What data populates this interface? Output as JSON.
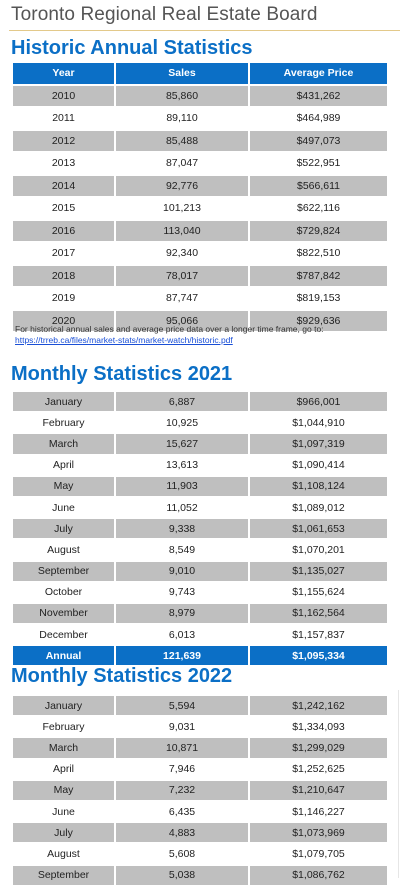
{
  "header": {
    "board": "Toronto Regional Real Estate Board"
  },
  "historic": {
    "title": "Historic Annual Statistics",
    "columns": [
      "Year",
      "Sales",
      "Average Price"
    ],
    "rows": [
      [
        "2010",
        "85,860",
        "$431,262"
      ],
      [
        "2011",
        "89,110",
        "$464,989"
      ],
      [
        "2012",
        "85,488",
        "$497,073"
      ],
      [
        "2013",
        "87,047",
        "$522,951"
      ],
      [
        "2014",
        "92,776",
        "$566,611"
      ],
      [
        "2015",
        "101,213",
        "$622,116"
      ],
      [
        "2016",
        "113,040",
        "$729,824"
      ],
      [
        "2017",
        "92,340",
        "$822,510"
      ],
      [
        "2018",
        "78,017",
        "$787,842"
      ],
      [
        "2019",
        "87,747",
        "$819,153"
      ],
      [
        "2020",
        "95,066",
        "$929,636"
      ]
    ],
    "note": "For historical annual sales and average price data over a longer time frame, go to:",
    "link": "https://trreb.ca/files/market-stats/market-watch/historic.pdf"
  },
  "monthly2021": {
    "title": "Monthly Statistics 2021",
    "rows": [
      [
        "January",
        "6,887",
        "$966,001"
      ],
      [
        "February",
        "10,925",
        "$1,044,910"
      ],
      [
        "March",
        "15,627",
        "$1,097,319"
      ],
      [
        "April",
        "13,613",
        "$1,090,414"
      ],
      [
        "May",
        "11,903",
        "$1,108,124"
      ],
      [
        "June",
        "11,052",
        "$1,089,012"
      ],
      [
        "July",
        "9,338",
        "$1,061,653"
      ],
      [
        "August",
        "8,549",
        "$1,070,201"
      ],
      [
        "September",
        "9,010",
        "$1,135,027"
      ],
      [
        "October",
        "9,743",
        "$1,155,624"
      ],
      [
        "November",
        "8,979",
        "$1,162,564"
      ],
      [
        "December",
        "6,013",
        "$1,157,837"
      ]
    ],
    "total": [
      "Annual",
      "121,639",
      "$1,095,334"
    ]
  },
  "monthly2022": {
    "title": "Monthly Statistics 2022",
    "rows": [
      [
        "January",
        "5,594",
        "$1,242,162"
      ],
      [
        "February",
        "9,031",
        "$1,334,093"
      ],
      [
        "March",
        "10,871",
        "$1,299,029"
      ],
      [
        "April",
        "7,946",
        "$1,252,625"
      ],
      [
        "May",
        "7,232",
        "$1,210,647"
      ],
      [
        "June",
        "6,435",
        "$1,146,227"
      ],
      [
        "July",
        "4,883",
        "$1,073,969"
      ],
      [
        "August",
        "5,608",
        "$1,079,705"
      ],
      [
        "September",
        "5,038",
        "$1,086,762"
      ]
    ]
  },
  "colors": {
    "brand_blue": "#0b6fc6",
    "row_gray": "#bfbfbf",
    "link": "#1a4fd6"
  }
}
